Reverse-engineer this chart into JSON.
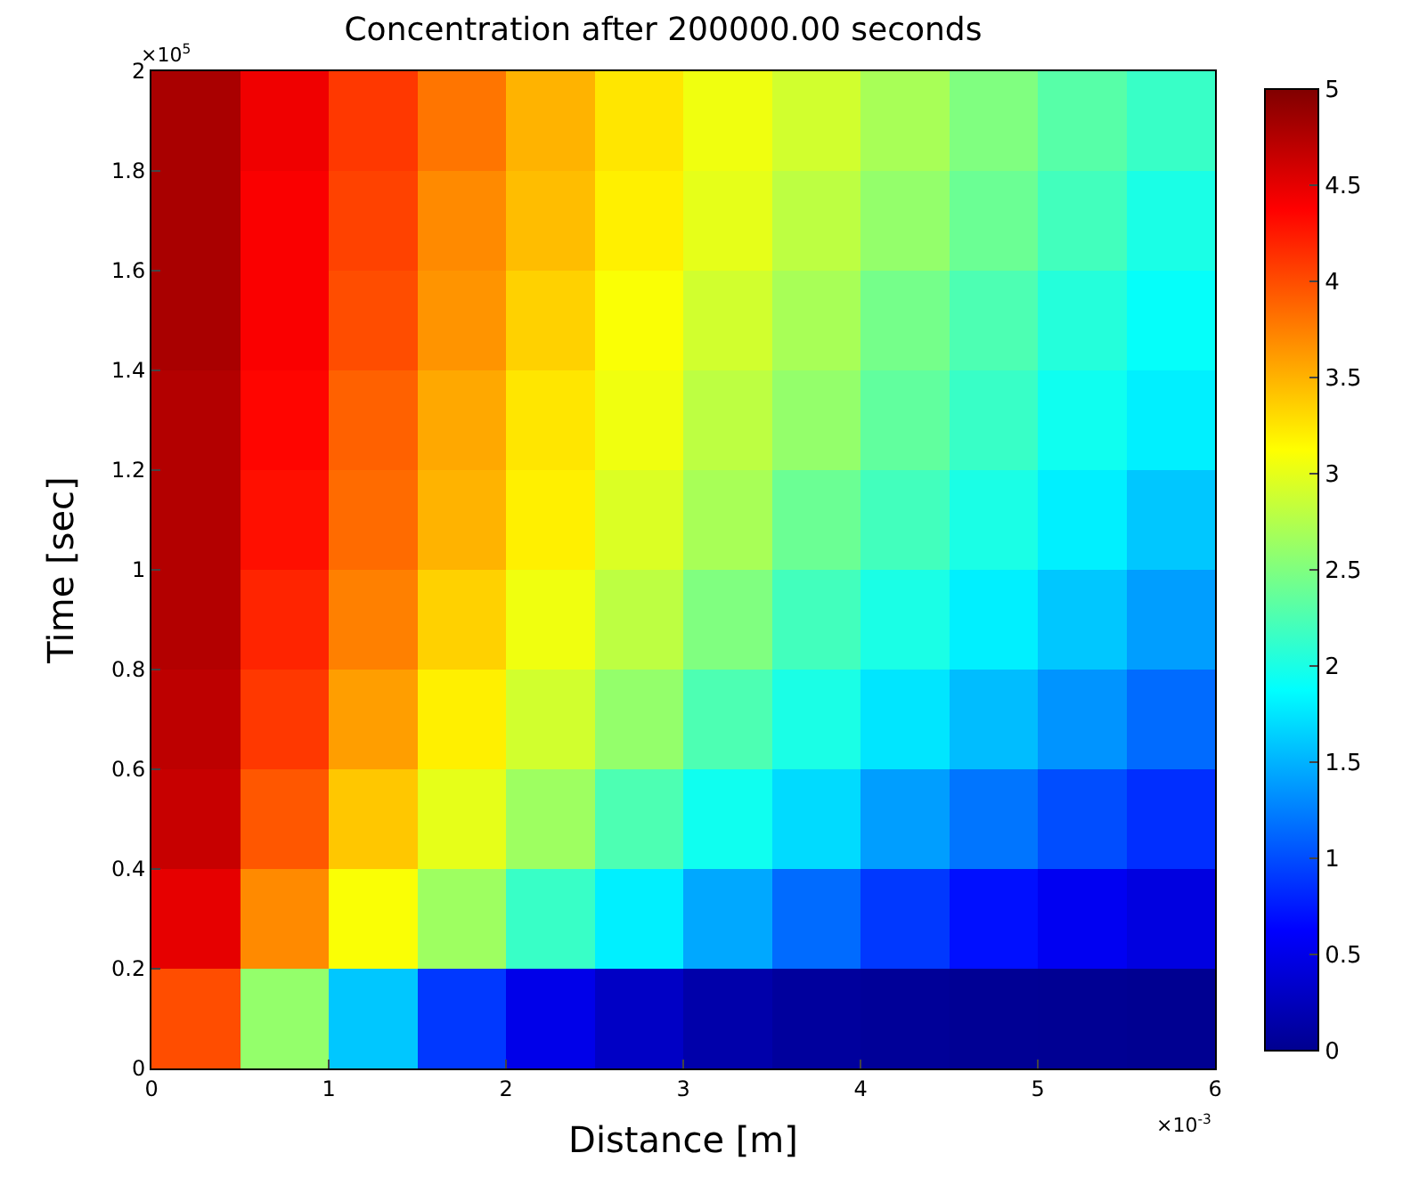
{
  "chart_data": {
    "type": "heatmap",
    "title": "Concentration after 200000.00 seconds",
    "xlabel": "Distance [m]",
    "ylabel": "Time [sec]",
    "annotations": [
      "×10$^{5}$",
      "×10$^{-3}$"
    ],
    "xlim": [
      0,
      6
    ],
    "xticks": [
      0,
      1,
      2,
      3,
      4,
      5,
      6
    ],
    "ylim": [
      0,
      2
    ],
    "yticks": [
      0,
      0.2,
      0.4,
      0.6,
      0.8,
      1,
      1.2,
      1.4,
      1.6,
      1.8,
      2
    ],
    "clim": [
      0,
      5
    ],
    "cticks": [
      0,
      0.5,
      1,
      1.5,
      2,
      2.5,
      3,
      3.5,
      4,
      4.5,
      5
    ],
    "cells": [
      [
        4.8,
        4.45,
        4.1,
        3.8,
        3.5,
        3.25,
        3.05,
        2.9,
        2.7,
        2.5,
        2.3,
        2.15
      ],
      [
        4.8,
        4.4,
        4.05,
        3.7,
        3.45,
        3.2,
        3.0,
        2.8,
        2.6,
        2.4,
        2.2,
        2.0
      ],
      [
        4.8,
        4.4,
        4.0,
        3.65,
        3.35,
        3.1,
        2.9,
        2.7,
        2.45,
        2.25,
        2.05,
        1.9
      ],
      [
        4.75,
        4.35,
        3.9,
        3.55,
        3.25,
        3.05,
        2.8,
        2.6,
        2.35,
        2.15,
        1.95,
        1.8
      ],
      [
        4.75,
        4.3,
        3.85,
        3.5,
        3.2,
        2.95,
        2.7,
        2.4,
        2.2,
        2.0,
        1.8,
        1.6
      ],
      [
        4.75,
        4.2,
        3.75,
        3.35,
        3.05,
        2.8,
        2.5,
        2.2,
        2.0,
        1.8,
        1.6,
        1.4
      ],
      [
        4.7,
        4.1,
        3.6,
        3.2,
        2.9,
        2.6,
        2.25,
        2.0,
        1.75,
        1.55,
        1.35,
        1.15
      ],
      [
        4.65,
        3.95,
        3.4,
        3.0,
        2.65,
        2.25,
        1.95,
        1.7,
        1.4,
        1.2,
        1.0,
        0.85
      ],
      [
        4.5,
        3.7,
        3.1,
        2.65,
        2.15,
        1.8,
        1.45,
        1.15,
        0.9,
        0.7,
        0.55,
        0.45
      ],
      [
        4.0,
        2.6,
        1.6,
        0.9,
        0.5,
        0.3,
        0.15,
        0.08,
        0.05,
        0.03,
        0.02,
        0.01
      ]
    ]
  }
}
